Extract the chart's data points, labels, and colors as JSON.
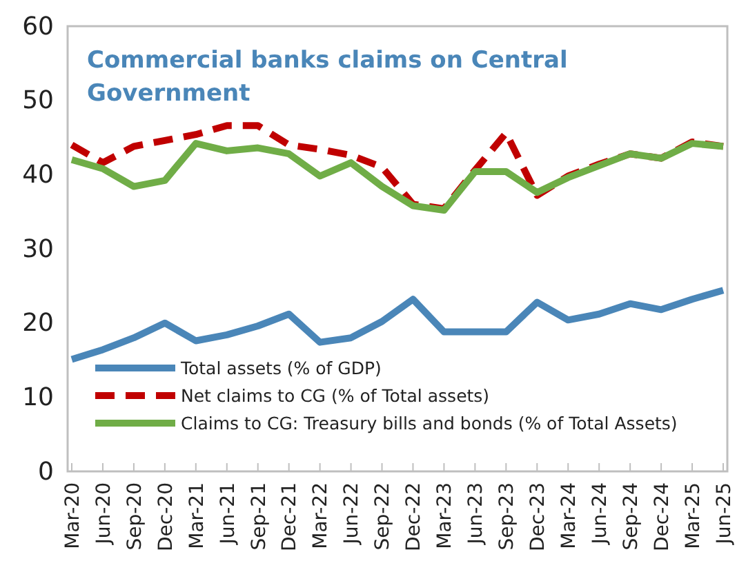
{
  "chart_data": {
    "type": "line",
    "title": "Commercial banks claims on Central Government",
    "categories": [
      "Mar-20",
      "Jun-20",
      "Sep-20",
      "Dec-20",
      "Mar-21",
      "Jun-21",
      "Sep-21",
      "Dec-21",
      "Mar-22",
      "Jun-22",
      "Sep-22",
      "Dec-22",
      "Mar-23",
      "Jun-23",
      "Sep-23",
      "Dec-23",
      "Mar-24",
      "Jun-24",
      "Sep-24",
      "Dec-24",
      "Mar-25",
      "Jun-25"
    ],
    "series": [
      {
        "name": "Total assets (% of GDP)",
        "color": "#4a86b8",
        "line_style": "solid",
        "values": [
          15.1,
          16.4,
          18,
          20,
          17.6,
          18.4,
          19.6,
          21.2,
          17.4,
          18,
          20.2,
          23.2,
          18.8,
          18.8,
          18.8,
          22.8,
          20.4,
          21.2,
          22.6,
          21.8,
          23.2,
          24.4
        ]
      },
      {
        "name": "Net claims to CG (% of Total assets)",
        "color": "#c00000",
        "line_style": "dashed",
        "values": [
          44,
          41.6,
          43.8,
          44.6,
          45.4,
          46.6,
          46.6,
          44,
          43.4,
          42.6,
          41,
          36,
          35.4,
          40.6,
          45.6,
          37.2,
          39.8,
          41.4,
          42.8,
          42.2,
          44.4,
          43.8
        ]
      },
      {
        "name": "Claims to CG: Treasury bills and bonds (% of Total Assets)",
        "color": "#70ad47",
        "line_style": "solid",
        "values": [
          42,
          40.8,
          38.4,
          39.2,
          44.2,
          43.2,
          43.6,
          42.8,
          39.8,
          41.6,
          38.4,
          35.8,
          35.2,
          40.4,
          40.4,
          37.6,
          39.6,
          41.2,
          42.8,
          42.2,
          44.2,
          43.8
        ]
      }
    ],
    "ylim": [
      0,
      60
    ],
    "yticks": [
      0,
      10,
      20,
      30,
      40,
      50,
      60
    ],
    "grid": false,
    "legend": "bottom left",
    "marker": "none"
  }
}
